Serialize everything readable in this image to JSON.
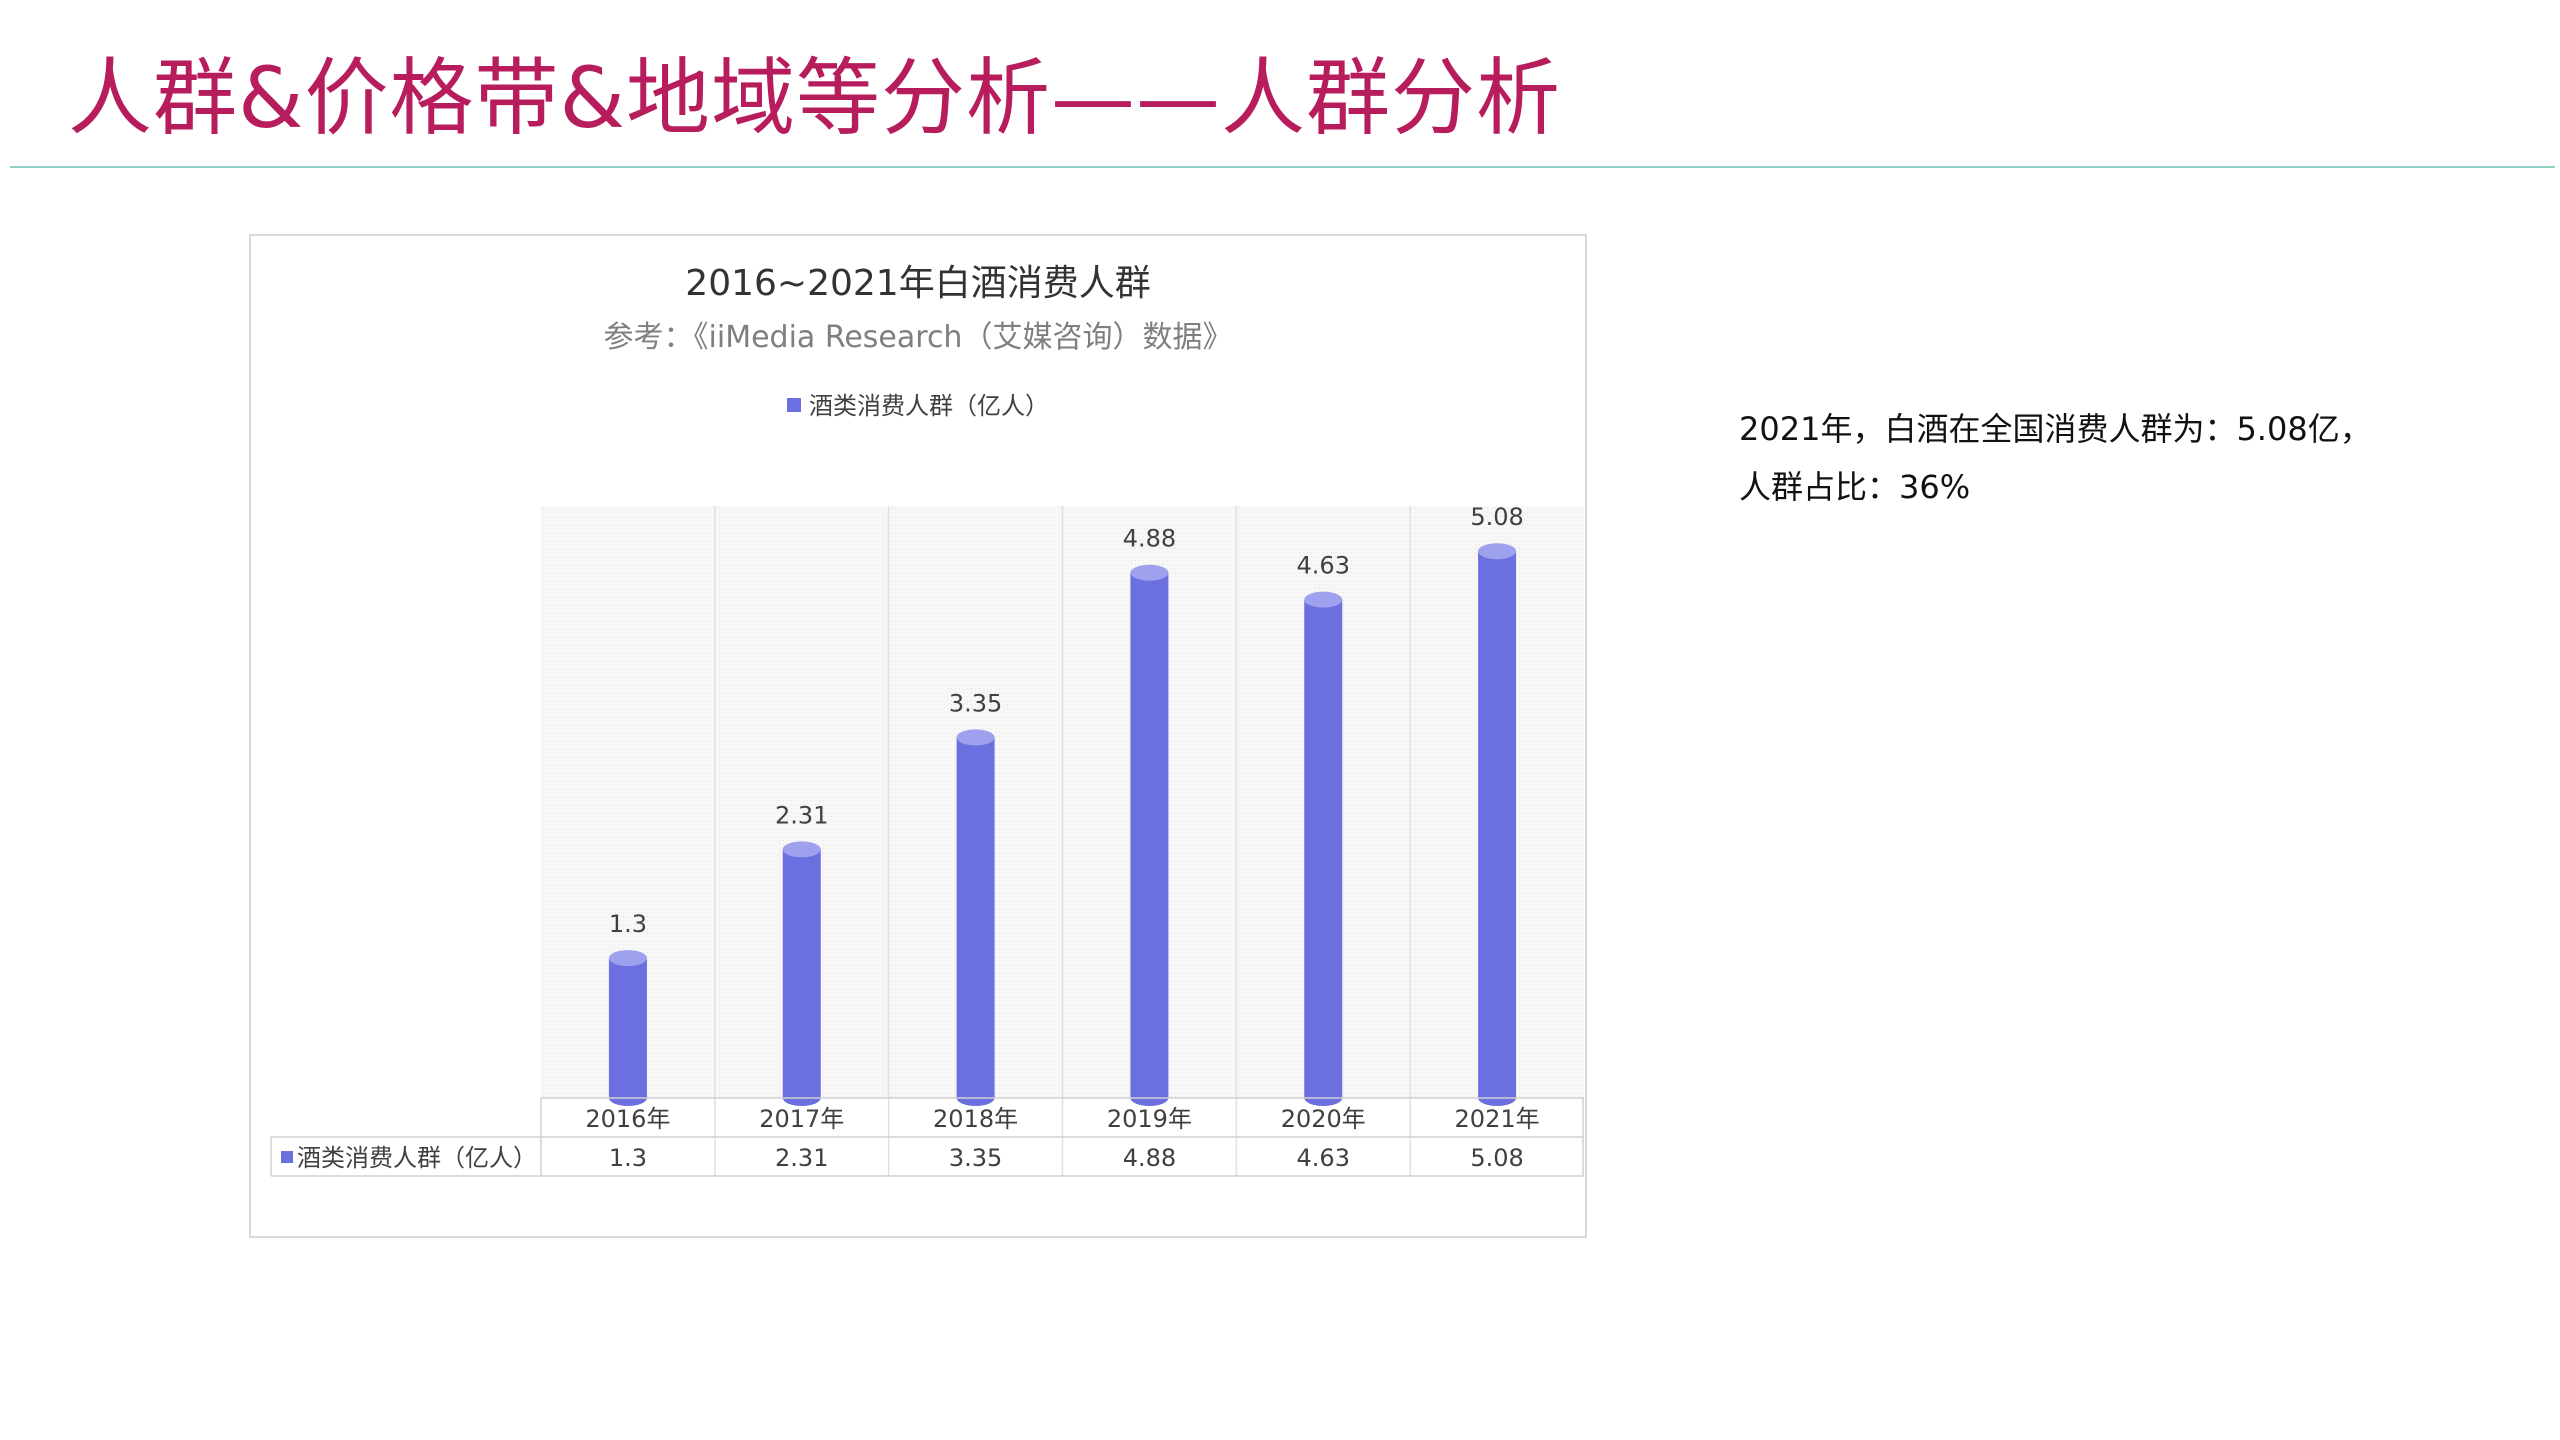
{
  "page": {
    "title": "人群&价格带&地域等分析——人群分析",
    "note_line1": "2021年，白酒在全国消费人群为：5.08亿，",
    "note_line2": "人群占比：36%"
  },
  "chart_data": {
    "type": "bar",
    "title": "2016~2021年白酒消费人群",
    "subtitle": "参考：《iiMedia Research（艾媒咨询）数据》",
    "categories": [
      "2016年",
      "2017年",
      "2018年",
      "2019年",
      "2020年",
      "2021年"
    ],
    "series": [
      {
        "name": "酒类消费人群（亿人）",
        "values": [
          1.3,
          2.31,
          3.35,
          4.88,
          4.63,
          5.08
        ],
        "color": "#6b6fe0"
      }
    ],
    "value_labels": [
      "1.3",
      "2.31",
      "3.35",
      "4.88",
      "4.63",
      "5.08"
    ],
    "ylim": [
      0,
      5.5
    ],
    "legend_position": "top",
    "data_table": true,
    "grid": false,
    "bar_shape": "cylinder"
  }
}
